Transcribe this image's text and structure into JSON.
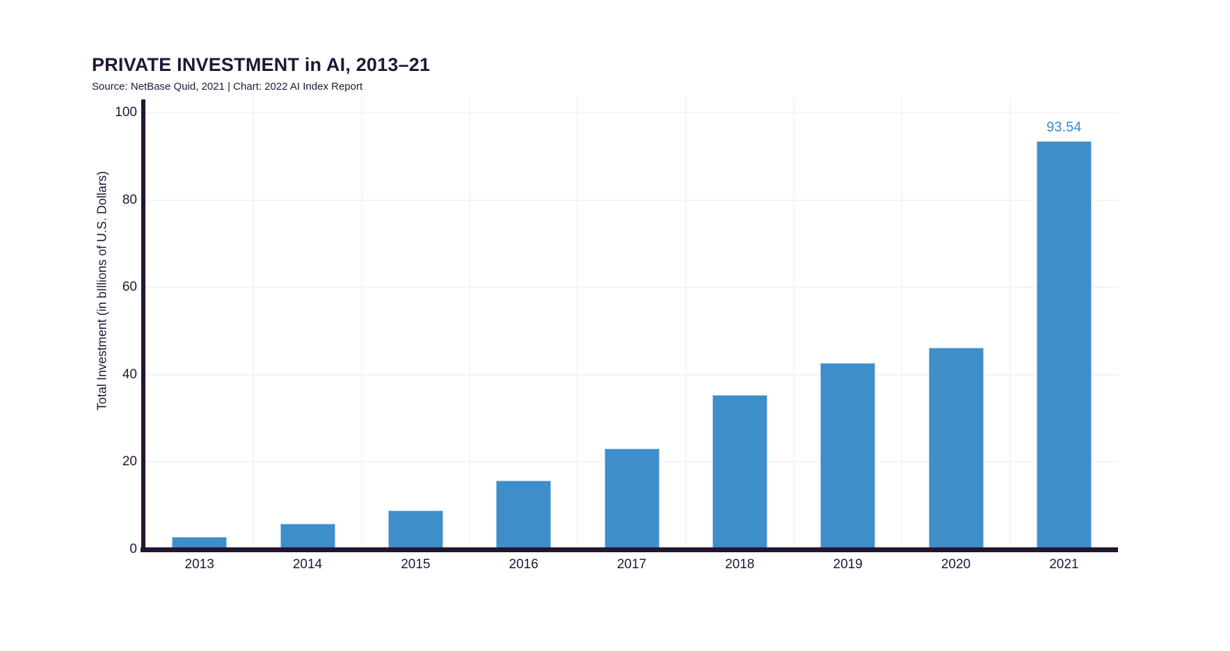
{
  "page": {
    "background": "#ffffff"
  },
  "chart_data": {
    "type": "bar",
    "title": "PRIVATE INVESTMENT in AI, 2013–21",
    "subtitle": "Source: NetBase Quid, 2021 | Chart: 2022 AI Index Report",
    "ylabel": "Total Investment (in bIllions of U.S. Dollars)",
    "xlabel": "",
    "categories": [
      "2013",
      "2014",
      "2015",
      "2016",
      "2017",
      "2018",
      "2019",
      "2020",
      "2021"
    ],
    "values": [
      2.9,
      5.9,
      8.9,
      15.8,
      23.1,
      35.3,
      42.7,
      46.2,
      93.54
    ],
    "yticks": [
      0,
      20,
      40,
      60,
      80,
      100
    ],
    "ylim": [
      0,
      100
    ],
    "legend": "none",
    "grid": {
      "horizontal": true,
      "vertical": true
    },
    "bar_label": {
      "category": "2021",
      "text": "93.54"
    },
    "colors": {
      "bar": "#3E8EC9",
      "bar_edge": "#A6CBE8",
      "bar_label_text": "#3889CB",
      "axis": "#241533",
      "text": "#241533",
      "gridline": "#F4F4F4"
    }
  }
}
